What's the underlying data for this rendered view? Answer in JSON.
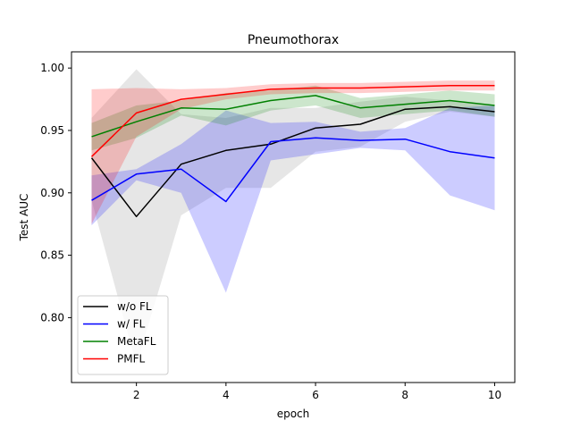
{
  "chart_data": {
    "type": "line",
    "title": "Pneumothorax",
    "xlabel": "epoch",
    "ylabel": "Test AUC",
    "xlim": [
      0.55,
      10.45
    ],
    "ylim": [
      0.748,
      1.013
    ],
    "xticks": [
      "2",
      "4",
      "6",
      "8",
      "10"
    ],
    "yticks": [
      "0.80",
      "0.85",
      "0.90",
      "0.95",
      "1.00"
    ],
    "grid": false,
    "legend_position": "lower-left",
    "x": [
      1,
      2,
      3,
      4,
      5,
      6,
      7,
      8,
      9,
      10
    ],
    "series": [
      {
        "name": "w/o FL",
        "color": "#000000",
        "band_color": "#808080",
        "values": [
          0.928,
          0.881,
          0.923,
          0.934,
          0.939,
          0.952,
          0.955,
          0.967,
          0.969,
          0.965
        ],
        "lower": [
          0.894,
          0.762,
          0.882,
          0.904,
          0.904,
          0.933,
          0.937,
          0.957,
          0.965,
          0.961
        ],
        "upper": [
          0.96,
          0.999,
          0.963,
          0.96,
          0.968,
          0.968,
          0.973,
          0.977,
          0.974,
          0.969
        ]
      },
      {
        "name": "w/ FL",
        "color": "#0000ff",
        "band_color": "#0000ff",
        "values": [
          0.894,
          0.915,
          0.919,
          0.893,
          0.941,
          0.944,
          0.942,
          0.943,
          0.933,
          0.928
        ],
        "lower": [
          0.874,
          0.91,
          0.9,
          0.82,
          0.926,
          0.931,
          0.936,
          0.934,
          0.898,
          0.886
        ],
        "upper": [
          0.914,
          0.919,
          0.939,
          0.966,
          0.956,
          0.957,
          0.949,
          0.952,
          0.968,
          0.97
        ]
      },
      {
        "name": "MetaFL",
        "color": "#008000",
        "band_color": "#008000",
        "values": [
          0.945,
          0.957,
          0.968,
          0.967,
          0.974,
          0.978,
          0.968,
          0.971,
          0.974,
          0.97
        ],
        "lower": [
          0.934,
          0.944,
          0.962,
          0.954,
          0.966,
          0.97,
          0.96,
          0.963,
          0.966,
          0.961
        ],
        "upper": [
          0.956,
          0.97,
          0.974,
          0.98,
          0.982,
          0.986,
          0.976,
          0.979,
          0.982,
          0.979
        ]
      },
      {
        "name": "PMFL",
        "color": "#ff0000",
        "band_color": "#ff0000",
        "values": [
          0.929,
          0.964,
          0.975,
          0.979,
          0.983,
          0.984,
          0.984,
          0.985,
          0.986,
          0.986
        ],
        "lower": [
          0.875,
          0.945,
          0.967,
          0.975,
          0.979,
          0.98,
          0.98,
          0.981,
          0.982,
          0.982
        ],
        "upper": [
          0.983,
          0.984,
          0.983,
          0.984,
          0.987,
          0.988,
          0.988,
          0.989,
          0.99,
          0.99
        ]
      }
    ]
  }
}
